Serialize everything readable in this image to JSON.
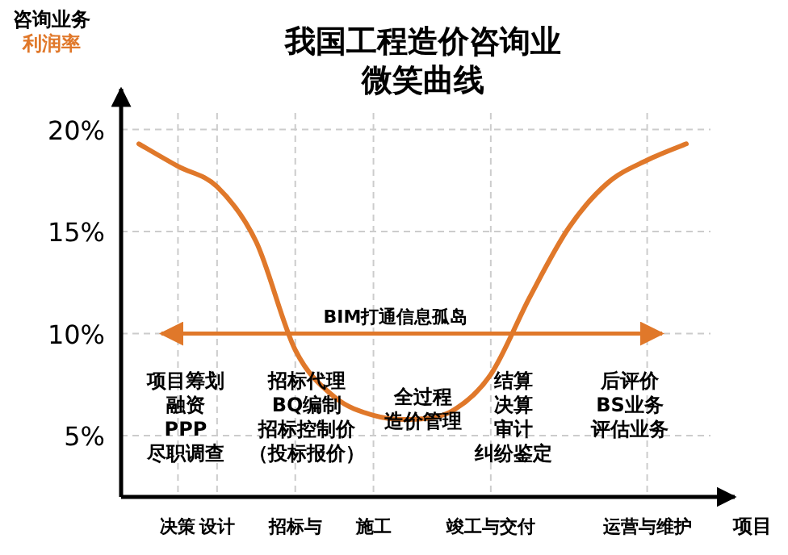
{
  "chart_data": {
    "type": "line",
    "title": "我国工程造价咨询业微笑曲线",
    "ylabel": "咨询业务利润率",
    "xlabel": "项目",
    "categories": [
      null,
      "决策",
      "设计",
      null,
      "招标与",
      null,
      "施工",
      null,
      null,
      "竣工与交付",
      null,
      null,
      null,
      "运营与维护",
      null
    ],
    "series": [
      {
        "color": "#e0782a",
        "values": [
          19.3,
          18.2,
          17.2,
          14.5,
          9.2,
          6.9,
          6,
          5.8,
          6.2,
          8,
          11.8,
          15.2,
          17.4,
          18.5,
          19.3
        ]
      }
    ],
    "ylim": [
      2,
      22
    ],
    "yticks": [
      {
        "value": 5,
        "label": "5%"
      },
      {
        "value": 10,
        "label": "10%"
      },
      {
        "value": 15,
        "label": "15%"
      },
      {
        "value": 20,
        "label": "20%"
      }
    ],
    "grid": true,
    "line_style": "solid",
    "ref_lines": [
      {
        "axis": "y",
        "value": 10,
        "label": "BIM打通信息孤岛",
        "color": "#e0782a"
      }
    ],
    "annotations": [
      "项目筹划",
      "融资",
      "PPP",
      "尽职调查",
      "招标代理",
      "BQ编制",
      "招标控制价",
      "（投标报价）",
      "全过程",
      "造价管理",
      "结算",
      "决算",
      "审计",
      "纠纷鉴定",
      "后评价",
      "BS业务",
      "评估业务"
    ]
  }
}
